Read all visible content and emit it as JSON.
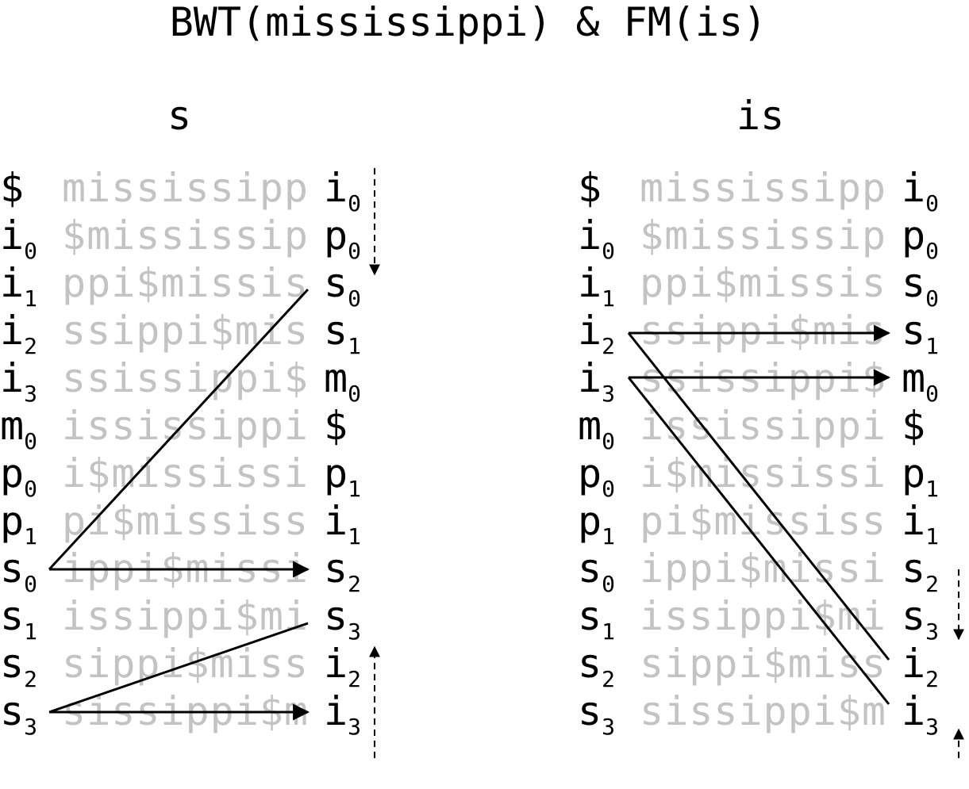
{
  "title": "BWT(mississippi) & FM(is)",
  "panels": [
    {
      "label": "s",
      "rows": [
        {
          "f": "$",
          "fs": "",
          "mid": "mississipp",
          "l": "i",
          "ls": "0"
        },
        {
          "f": "i",
          "fs": "0",
          "mid": "$mississip",
          "l": "p",
          "ls": "0"
        },
        {
          "f": "i",
          "fs": "1",
          "mid": "ppi$missis",
          "l": "s",
          "ls": "0"
        },
        {
          "f": "i",
          "fs": "2",
          "mid": "ssippi$mis",
          "l": "s",
          "ls": "1"
        },
        {
          "f": "i",
          "fs": "3",
          "mid": "ssissippi$",
          "l": "m",
          "ls": "0"
        },
        {
          "f": "m",
          "fs": "0",
          "mid": "ississippi",
          "l": "$",
          "ls": ""
        },
        {
          "f": "p",
          "fs": "0",
          "mid": "i$mississi",
          "l": "p",
          "ls": "1"
        },
        {
          "f": "p",
          "fs": "1",
          "mid": "pi$mississ",
          "l": "i",
          "ls": "1"
        },
        {
          "f": "s",
          "fs": "0",
          "mid": "ippi$missi",
          "l": "s",
          "ls": "2"
        },
        {
          "f": "s",
          "fs": "1",
          "mid": "issippi$mi",
          "l": "s",
          "ls": "3"
        },
        {
          "f": "s",
          "fs": "2",
          "mid": "sippi$miss",
          "l": "i",
          "ls": "2"
        },
        {
          "f": "s",
          "fs": "3",
          "mid": "sissippi$m",
          "l": "i",
          "ls": "3"
        }
      ]
    },
    {
      "label": "is",
      "rows": [
        {
          "f": "$",
          "fs": "",
          "mid": "mississipp",
          "l": "i",
          "ls": "0"
        },
        {
          "f": "i",
          "fs": "0",
          "mid": "$mississip",
          "l": "p",
          "ls": "0"
        },
        {
          "f": "i",
          "fs": "1",
          "mid": "ppi$missis",
          "l": "s",
          "ls": "0"
        },
        {
          "f": "i",
          "fs": "2",
          "mid": "ssippi$mis",
          "l": "s",
          "ls": "1"
        },
        {
          "f": "i",
          "fs": "3",
          "mid": "ssissippi$",
          "l": "m",
          "ls": "0"
        },
        {
          "f": "m",
          "fs": "0",
          "mid": "ississippi",
          "l": "$",
          "ls": ""
        },
        {
          "f": "p",
          "fs": "0",
          "mid": "i$mississi",
          "l": "p",
          "ls": "1"
        },
        {
          "f": "p",
          "fs": "1",
          "mid": "pi$mississ",
          "l": "i",
          "ls": "1"
        },
        {
          "f": "s",
          "fs": "0",
          "mid": "ippi$missi",
          "l": "s",
          "ls": "2"
        },
        {
          "f": "s",
          "fs": "1",
          "mid": "issippi$mi",
          "l": "s",
          "ls": "3"
        },
        {
          "f": "s",
          "fs": "2",
          "mid": "sippi$miss",
          "l": "i",
          "ls": "2"
        },
        {
          "f": "s",
          "fs": "3",
          "mid": "sissippi$m",
          "l": "i",
          "ls": "3"
        }
      ]
    }
  ],
  "colors": {
    "text": "#000000",
    "faded": "#c3c3c3",
    "lines": "#000000"
  }
}
